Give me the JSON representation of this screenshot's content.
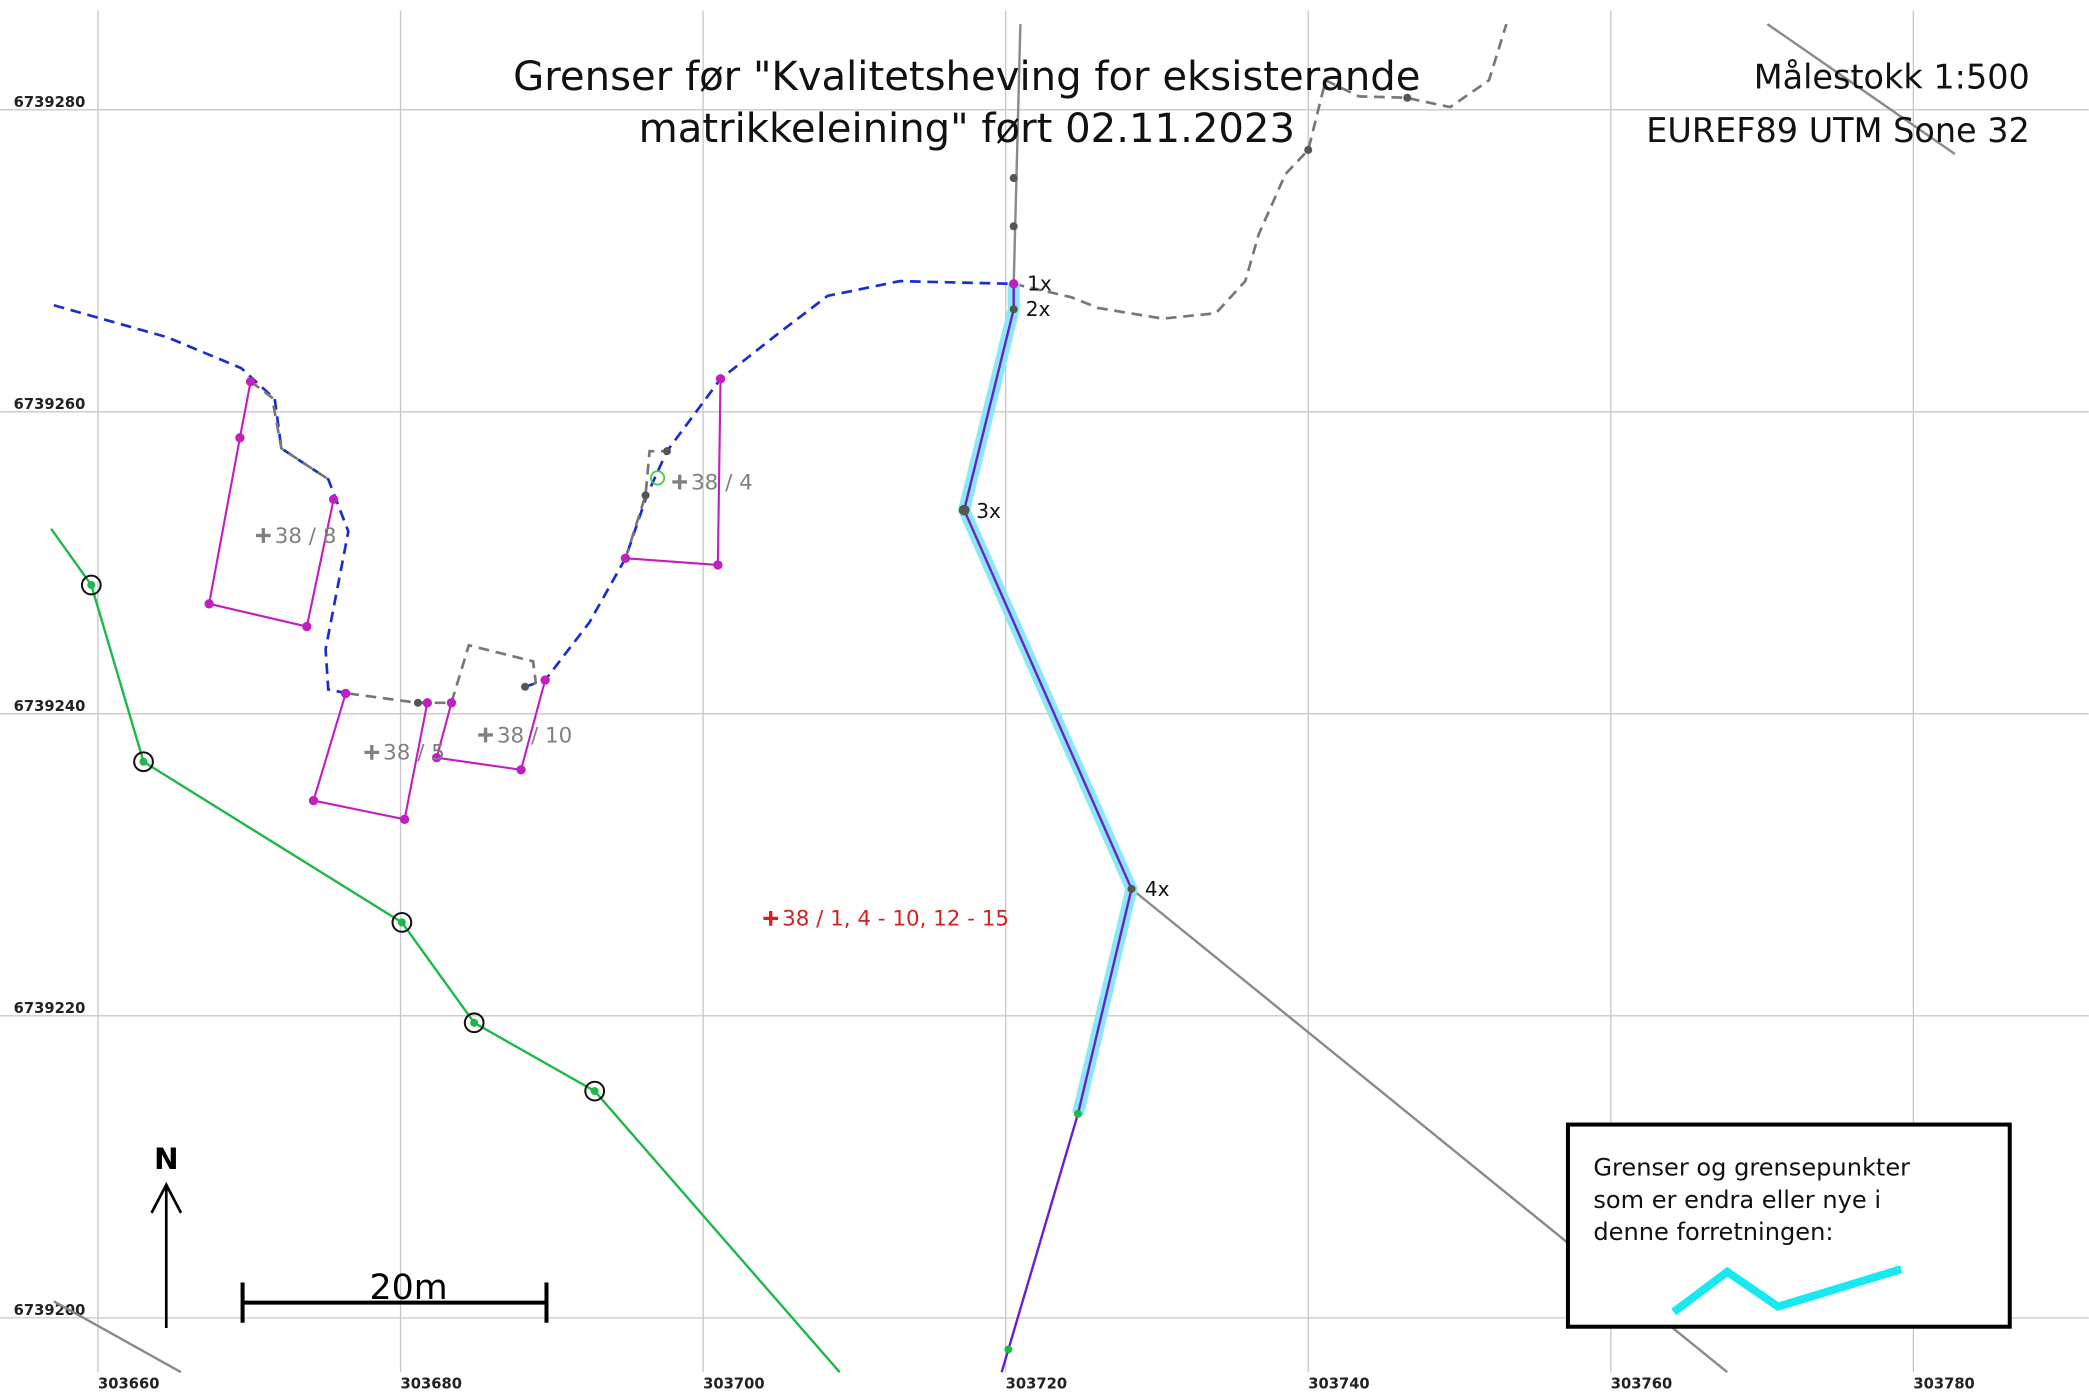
{
  "title": [
    "Grenser før \"Kvalitetsheving for eksisterande",
    "matrikkeleining\" ført 02.11.2023"
  ],
  "scale_info": [
    "Målestokk 1:500",
    "EUREF89 UTM Sone 32"
  ],
  "grid": {
    "eastings": [
      303660,
      303680,
      303700,
      303720,
      303740,
      303760,
      303780
    ],
    "northings": [
      6739280,
      6739260,
      6739240,
      6739220,
      6739200
    ]
  },
  "parcels": [
    "38 / 8",
    "38 / 4",
    "38 / 5",
    "38 / 10",
    "38 / 1, 4 - 10, 12 - 15"
  ],
  "points": [
    "1x",
    "2x",
    "3x",
    "4x"
  ],
  "legend": [
    "Grenser og grensepunkter",
    "som er endra eller nye i",
    "denne forretningen:"
  ],
  "north": "N",
  "scale_bar": "20m"
}
